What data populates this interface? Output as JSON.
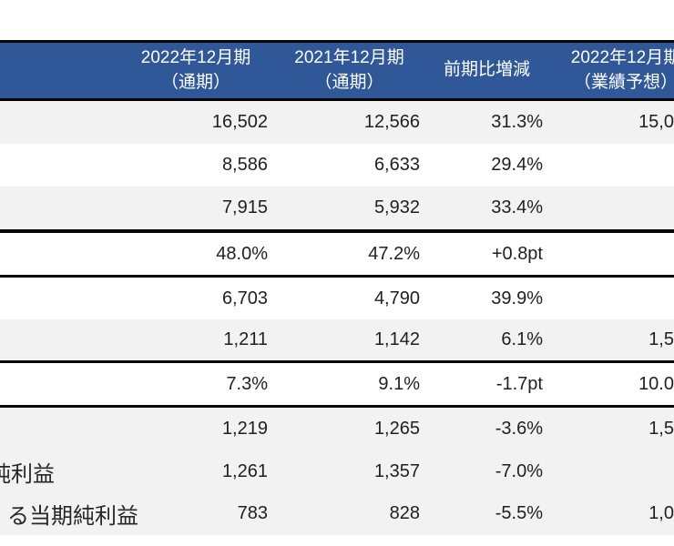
{
  "table": {
    "colors": {
      "header_bg": "#305898",
      "header_text": "#FFFFFF",
      "stripe_bg": "#F2F2F2",
      "row_bg": "#FFFFFF",
      "border": "#050505",
      "value_text": "#1F1F1F"
    },
    "header": {
      "columns": [
        {
          "line1": "2022年12月期",
          "line2": "（通期）"
        },
        {
          "line1": "2021年12月期",
          "line2": "（通期）"
        },
        {
          "line1": "前期比増減"
        },
        {
          "line1": "2022年12月期",
          "line2": "（業績予想）"
        }
      ]
    },
    "rows": [
      {
        "label": "",
        "c1": "16,502",
        "c2": "12,566",
        "c3": "31.3%",
        "c4": "15,0"
      },
      {
        "label": "",
        "c1": "8,586",
        "c2": "6,633",
        "c3": "29.4%",
        "c4": ""
      },
      {
        "label": "",
        "c1": "7,915",
        "c2": "5,932",
        "c3": "33.4%",
        "c4": ""
      },
      {
        "label": "",
        "c1": "48.0%",
        "c2": "47.2%",
        "c3": "+0.8pt",
        "c4": ""
      },
      {
        "label": "",
        "c1": "6,703",
        "c2": "4,790",
        "c3": "39.9%",
        "c4": ""
      },
      {
        "label": "",
        "c1": "1,211",
        "c2": "1,142",
        "c3": "6.1%",
        "c4": "1,5"
      },
      {
        "label": "",
        "c1": "7.3%",
        "c2": "9.1%",
        "c3": "-1.7pt",
        "c4": "10.0"
      },
      {
        "label": "",
        "c1": "1,219",
        "c2": "1,265",
        "c3": "-3.6%",
        "c4": "1,5"
      },
      {
        "label": "純利益",
        "c1": "1,261",
        "c2": "1,357",
        "c3": "-7.0%",
        "c4": ""
      },
      {
        "label": "る当期純利益",
        "c1": "783",
        "c2": "828",
        "c3": "-5.5%",
        "c4": "1,0"
      }
    ]
  }
}
